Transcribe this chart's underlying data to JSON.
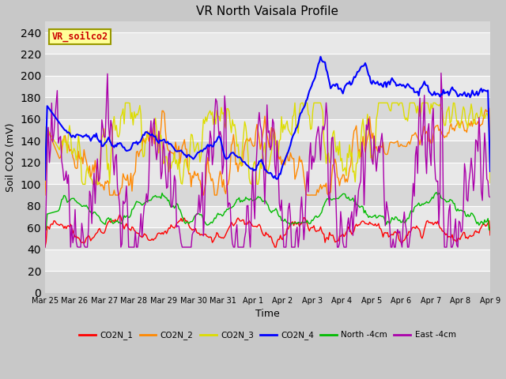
{
  "title": "VR North Vaisala Profile",
  "xlabel": "Time",
  "ylabel": "Soil CO2 (mV)",
  "ylim": [
    0,
    250
  ],
  "yticks": [
    0,
    20,
    40,
    60,
    80,
    100,
    120,
    140,
    160,
    180,
    200,
    220,
    240
  ],
  "annotation_text": "VR_soilco2",
  "annotation_color": "#cc0000",
  "annotation_bg": "#ffff99",
  "annotation_border": "#999900",
  "series_colors": {
    "CO2N_1": "#ff0000",
    "CO2N_2": "#ff8800",
    "CO2N_3": "#dddd00",
    "CO2N_4": "#0000ff",
    "North_4cm": "#00bb00",
    "East_4cm": "#aa00aa"
  },
  "legend_labels": [
    "CO2N_1",
    "CO2N_2",
    "CO2N_3",
    "CO2N_4",
    "North -4cm",
    "East -4cm"
  ],
  "x_tick_labels": [
    "Mar 25",
    "Mar 26",
    "Mar 27",
    "Mar 28",
    "Mar 29",
    "Mar 30",
    "Mar 31",
    "Apr 1",
    "Apr 2",
    "Apr 3",
    "Apr 4",
    "Apr 5",
    "Apr 6",
    "Apr 7",
    "Apr 8",
    "Apr 9"
  ],
  "band_colors": [
    "#d8d8d8",
    "#e8e8e8"
  ],
  "fig_bg": "#c8c8c8",
  "n_points": 400,
  "seed": 7
}
